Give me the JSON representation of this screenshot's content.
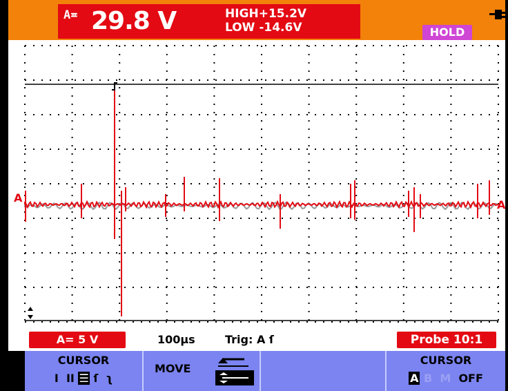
{
  "readout": {
    "channel": "A",
    "channel_symbol": "≖",
    "value": "29.8 V",
    "high": "HIGH+15.2V",
    "low": "LOW  -14.6V"
  },
  "hold_label": "HOLD",
  "marker_a": "A",
  "status": {
    "a_scale": "A= 5 V",
    "timebase": "100µs",
    "trigger": "Trig: A",
    "probe": "Probe 10:1"
  },
  "softkeys": {
    "cursor_title": "CURSOR",
    "cursor_modes": "I II ☰ ſ ʅ",
    "move_label": "MOVE",
    "cursor_off_title": "CURSOR",
    "cursor_off_options": "A  B  M  OFF"
  },
  "colors": {
    "orange": "#f2820a",
    "red": "#e30a13",
    "hold": "#cf45d4",
    "softkey": "#7b84f0",
    "grey_trace": "#9a9a9a"
  },
  "icons": [
    "plug-icon",
    "trigger-edge-icon",
    "ground-marker-icon"
  ]
}
